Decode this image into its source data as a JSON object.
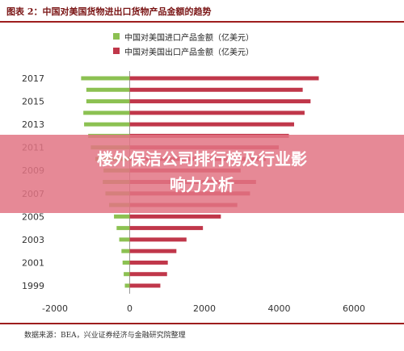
{
  "header": {
    "title": "图表 2：中国对美国货物进出口货物产品金额的趋势"
  },
  "legend": [
    {
      "label": "中国对美国进口产品金额（亿美元）",
      "color": "#8cc152"
    },
    {
      "label": "中国对美国出口产品金额（亿美元）",
      "color": "#c0374a"
    }
  ],
  "overlay": {
    "line1": "楼外保洁公司排行榜及行业影",
    "line2": "响力分析"
  },
  "footer": {
    "source": "数据来源：BEA，兴业证券经济与金融研究院整理"
  },
  "chart_data": {
    "type": "bar",
    "orientation": "horizontal",
    "categories": [
      "1999",
      "2000",
      "2001",
      "2002",
      "2003",
      "2004",
      "2005",
      "2006",
      "2007",
      "2008",
      "2009",
      "2010",
      "2011",
      "2012",
      "2013",
      "2014",
      "2015",
      "2016",
      "2017"
    ],
    "y_tick_labels": [
      "1999",
      "2001",
      "2003",
      "2005",
      "2007",
      "2009",
      "2011",
      "2013",
      "2015",
      "2017"
    ],
    "series": [
      {
        "name": "中国对美国进口产品金额（亿美元）",
        "color": "#8cc152",
        "values": [
          -130,
          -160,
          -190,
          -220,
          -280,
          -350,
          -420,
          -550,
          -650,
          -720,
          -700,
          -920,
          -1040,
          -1110,
          -1220,
          -1240,
          -1160,
          -1160,
          -1300
        ]
      },
      {
        "name": "中国对美国出口产品金额（亿美元）",
        "color": "#c0374a",
        "values": [
          820,
          1000,
          1020,
          1250,
          1520,
          1960,
          2440,
          2880,
          3220,
          3380,
          2970,
          3650,
          3990,
          4260,
          4400,
          4680,
          4840,
          4630,
          5060
        ]
      }
    ],
    "xlim": [
      -2000,
      6000
    ],
    "x_ticks": [
      -2000,
      0,
      2000,
      4000,
      6000
    ],
    "x_tick_labels": [
      "-2000",
      "0",
      "2000",
      "4000",
      "6000"
    ],
    "grid": false
  }
}
